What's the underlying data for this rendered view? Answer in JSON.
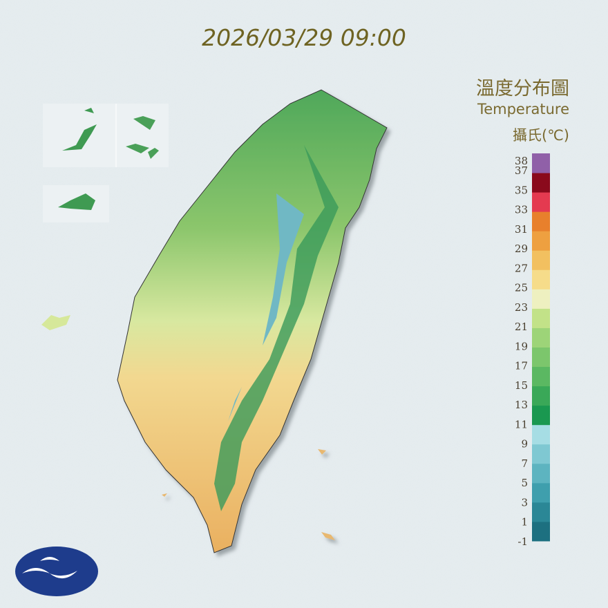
{
  "header": {
    "timestamp": "2026/03/29 09:00"
  },
  "legend": {
    "title_zh": "溫度分布圖",
    "title_en": "Temperature",
    "unit": "攝氏(℃)",
    "ticks": [
      38,
      37,
      35,
      33,
      31,
      29,
      27,
      25,
      23,
      21,
      19,
      17,
      15,
      13,
      11,
      9,
      7,
      5,
      3,
      1,
      -1
    ],
    "colors": [
      "#1d7080",
      "#2b8796",
      "#3f9fad",
      "#5db4c0",
      "#7fc8d2",
      "#a6dde4",
      "#1a9850",
      "#3aa858",
      "#5bb862",
      "#7cc66c",
      "#9dd478",
      "#c2e288",
      "#eef0c0",
      "#f6dc8a",
      "#f2c060",
      "#eea040",
      "#e8802c",
      "#e43a50",
      "#8a0a1c",
      "#9060a8"
    ]
  }
}
